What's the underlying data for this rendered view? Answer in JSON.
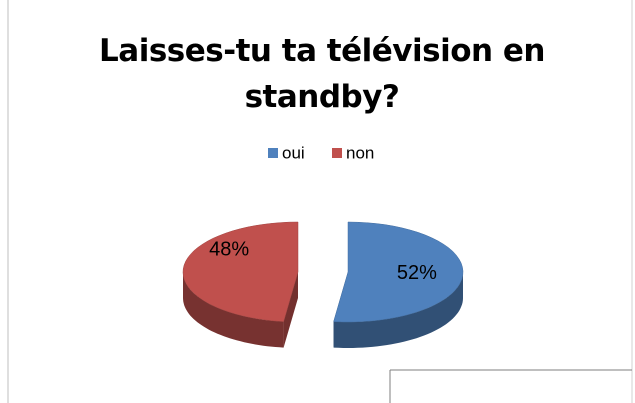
{
  "chart_data": {
    "type": "pie",
    "title": "Laisses-tu ta télévision en standby?",
    "categories": [
      "oui",
      "non"
    ],
    "values": [
      52,
      48
    ],
    "value_labels": [
      "52%",
      "48%"
    ],
    "colors": [
      "#4f81bd",
      "#c0504d"
    ],
    "legend": "top"
  }
}
